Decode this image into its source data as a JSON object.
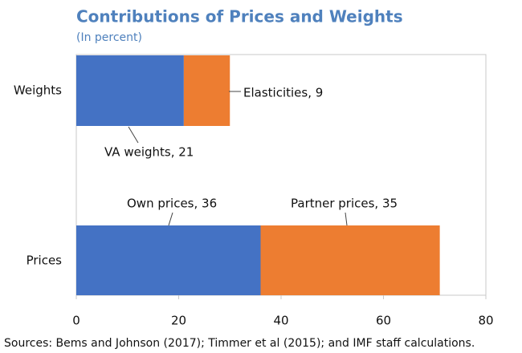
{
  "chart_data": {
    "type": "stacked-barh",
    "title": "Contributions of Prices and Weights",
    "subtitle": "(In percent)",
    "source": "Sources: Bems and Johnson (2017); Timmer et al (2015); and IMF staff calculations.",
    "categories": [
      "Weights",
      "Prices"
    ],
    "series": [
      {
        "color": "#4472c4",
        "values": [
          21,
          36
        ],
        "value_labels": [
          "VA weights, 21",
          "Own prices, 36"
        ]
      },
      {
        "color": "#ed7d31",
        "values": [
          9,
          35
        ],
        "value_labels": [
          "Elasticities, 9",
          "Partner prices, 35"
        ]
      }
    ],
    "xlim": [
      0,
      80
    ],
    "xticks": [
      0,
      20,
      40,
      60,
      80
    ]
  }
}
